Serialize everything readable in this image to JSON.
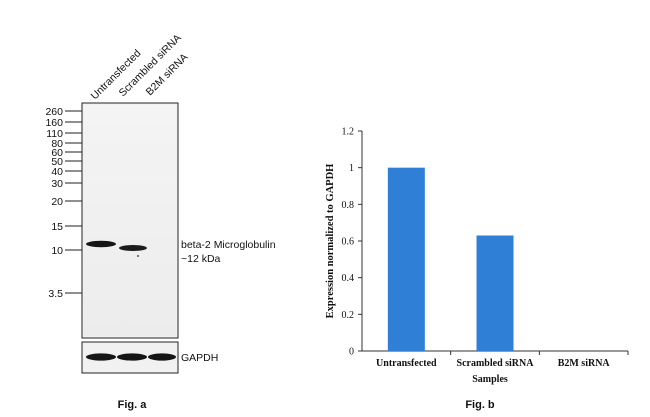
{
  "panel_a": {
    "lanes": [
      "Untransfected",
      "Scrambled siRNA",
      "B2M siRNA"
    ],
    "markers": [
      "260",
      "160",
      "110",
      "80",
      "60",
      "50",
      "40",
      "30",
      "20",
      "15",
      "10",
      "3.5"
    ],
    "band_label_line1": "beta-2 Microglobulin",
    "band_label_line2": "~12 kDa",
    "loading_label": "GAPDH",
    "caption": "Fig. a"
  },
  "panel_b": {
    "caption": "Fig. b"
  },
  "colors": {
    "bar": "#2f7fd6",
    "axis": "#333333",
    "blot_bg": "#f1f1f1",
    "band": "#151515"
  },
  "chart_data": {
    "type": "bar",
    "categories": [
      "Untransfected",
      "Scrambled siRNA",
      "B2M siRNA"
    ],
    "values": [
      1.0,
      0.63,
      0.0
    ],
    "xlabel": "Samples",
    "ylabel": "Expression normalized to GAPDH",
    "ylim": [
      0,
      1.2
    ],
    "yticks": [
      "0",
      "0.2",
      "0.4",
      "0.6",
      "0.8",
      "1",
      "1.2"
    ],
    "grid": false,
    "legend": "none"
  }
}
